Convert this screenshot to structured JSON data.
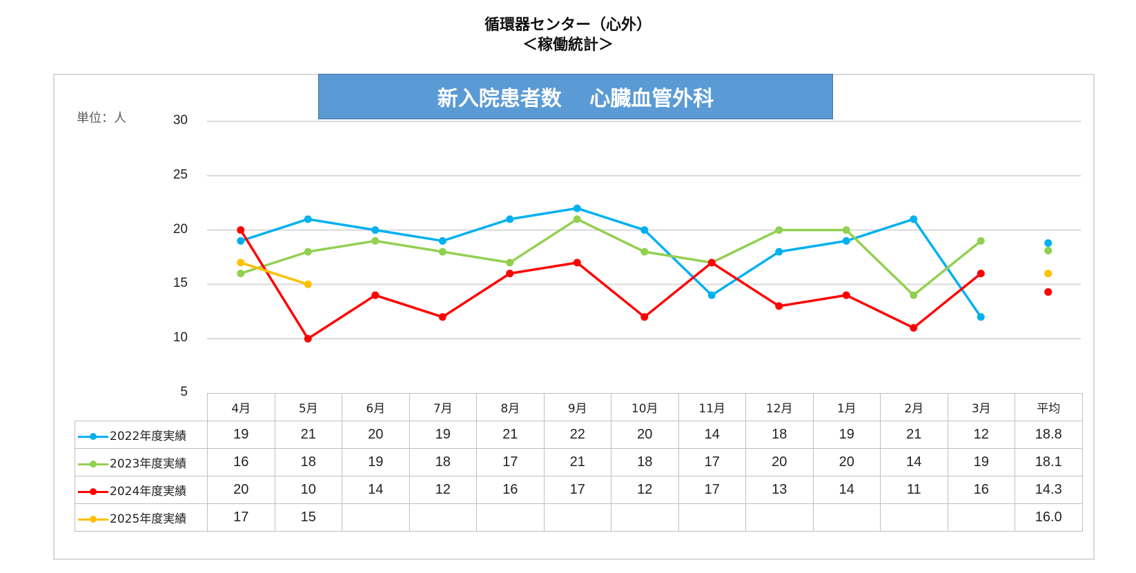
{
  "title_line1": "循環器センター（心外）",
  "title_line2": "＜稼働統計＞",
  "banner": "新入院患者数　 心臓血管外科",
  "unit_label": "単位：人",
  "chart_data": {
    "type": "line",
    "title": "新入院患者数　 心臓血管外科",
    "categories": [
      "4月",
      "5月",
      "6月",
      "7月",
      "8月",
      "9月",
      "10月",
      "11月",
      "12月",
      "1月",
      "2月",
      "3月"
    ],
    "average_label": "平均",
    "ylim": [
      5,
      30
    ],
    "yticks": [
      5,
      10,
      15,
      20,
      25,
      30
    ],
    "grid": true,
    "legend": "data-table-left",
    "series": [
      {
        "name": "2022年度実績",
        "color": "#00b0f0",
        "values": [
          19,
          21,
          20,
          19,
          21,
          22,
          20,
          14,
          18,
          19,
          21,
          12
        ],
        "average": "18.8"
      },
      {
        "name": "2023年度実績",
        "color": "#92d050",
        "values": [
          16,
          18,
          19,
          18,
          17,
          21,
          18,
          17,
          20,
          20,
          14,
          19
        ],
        "average": "18.1"
      },
      {
        "name": "2024年度実績",
        "color": "#ff0000",
        "values": [
          20,
          10,
          14,
          12,
          16,
          17,
          12,
          17,
          13,
          14,
          11,
          16
        ],
        "average": "14.3"
      },
      {
        "name": "2025年度実績",
        "color": "#ffc000",
        "values": [
          17,
          15,
          null,
          null,
          null,
          null,
          null,
          null,
          null,
          null,
          null,
          null
        ],
        "average": "16.0"
      }
    ]
  }
}
